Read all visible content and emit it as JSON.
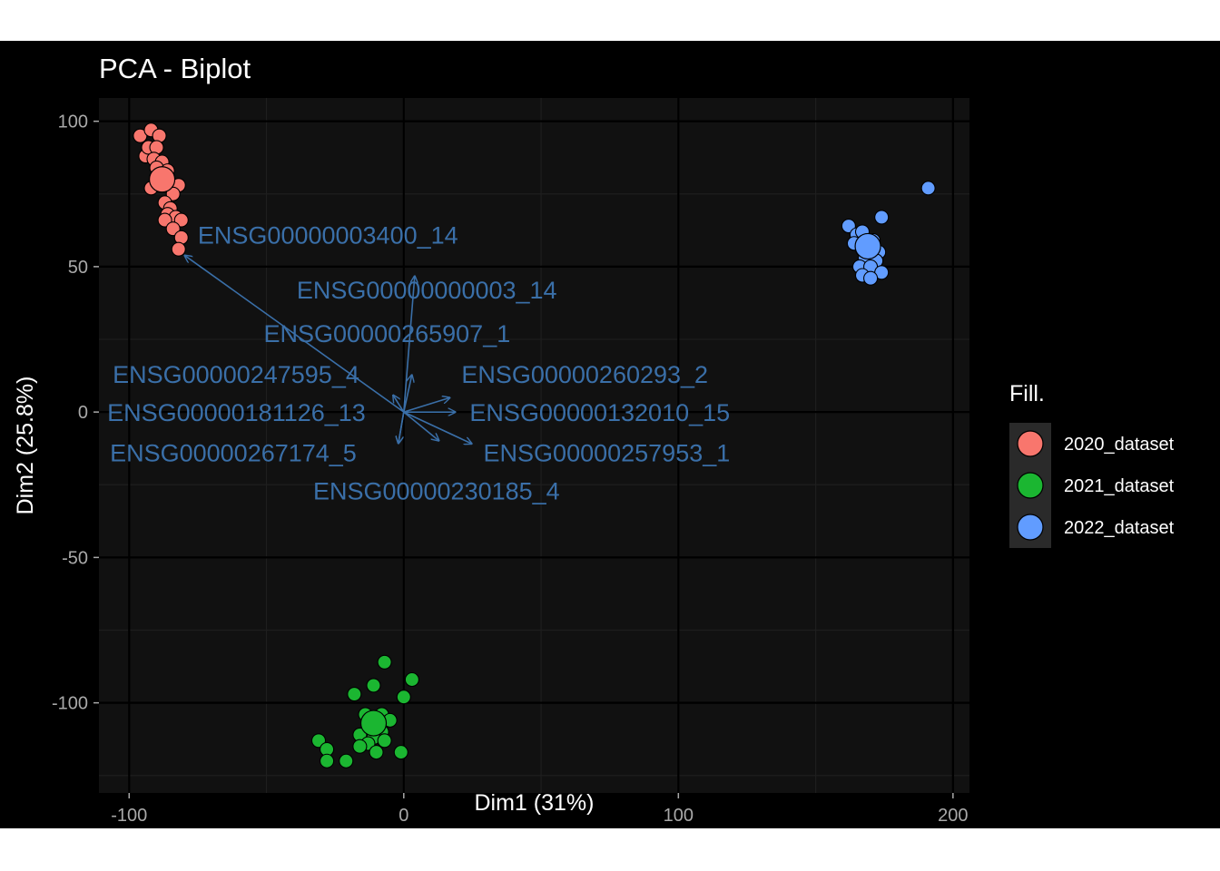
{
  "chart_data": {
    "type": "scatter",
    "title": "PCA - Biplot",
    "xlabel": "Dim1 (31%)",
    "ylabel": "Dim2 (25.8%)",
    "xlim": [
      -111,
      206
    ],
    "ylim": [
      -131,
      108
    ],
    "xticks": [
      -100,
      0,
      100,
      200
    ],
    "yticks": [
      -100,
      -50,
      0,
      50,
      100
    ],
    "xtick_labels": [
      "-100",
      "0",
      "100",
      "200"
    ],
    "ytick_labels": [
      "-100",
      "-50",
      "0",
      "50",
      "100"
    ],
    "grid": true,
    "legend": {
      "title": "Fill.",
      "position": "right",
      "entries": [
        "2020_dataset",
        "2021_dataset",
        "2022_dataset"
      ]
    },
    "colors": {
      "background": "#000000",
      "panel": "#111111",
      "grid_major": "#000000",
      "grid_minor": "#1e1e1e",
      "axis_text": "#a9a9a9",
      "label_text": "#ffffff",
      "arrow": "#3a6fa8",
      "legend_key": "#2a2a2a"
    },
    "series": [
      {
        "name": "2020_dataset",
        "color": "#f8766d",
        "centroid": [
          -88,
          80
        ],
        "points": [
          [
            -96,
            95
          ],
          [
            -92,
            97
          ],
          [
            -89,
            95
          ],
          [
            -94,
            88
          ],
          [
            -93,
            91
          ],
          [
            -90,
            91
          ],
          [
            -91,
            87
          ],
          [
            -88,
            86
          ],
          [
            -90,
            84
          ],
          [
            -86,
            83
          ],
          [
            -89,
            80
          ],
          [
            -87,
            78
          ],
          [
            -92,
            77
          ],
          [
            -82,
            78
          ],
          [
            -84,
            75
          ],
          [
            -87,
            72
          ],
          [
            -85,
            70
          ],
          [
            -86,
            68
          ],
          [
            -83,
            67
          ],
          [
            -87,
            66
          ],
          [
            -81,
            66
          ],
          [
            -84,
            63
          ],
          [
            -81,
            60
          ],
          [
            -82,
            56
          ]
        ]
      },
      {
        "name": "2021_dataset",
        "color": "#1bb631",
        "centroid": [
          -11,
          -107
        ],
        "points": [
          [
            -7,
            -86
          ],
          [
            3,
            -92
          ],
          [
            -18,
            -97
          ],
          [
            -11,
            -94
          ],
          [
            0,
            -98
          ],
          [
            -14,
            -104
          ],
          [
            -8,
            -104
          ],
          [
            -5,
            -106
          ],
          [
            -12,
            -109
          ],
          [
            -16,
            -111
          ],
          [
            -8,
            -110
          ],
          [
            -11,
            -112
          ],
          [
            -7,
            -113
          ],
          [
            -13,
            -114
          ],
          [
            -31,
            -113
          ],
          [
            -16,
            -115
          ],
          [
            -28,
            -116
          ],
          [
            -10,
            -117
          ],
          [
            -1,
            -117
          ],
          [
            -28,
            -120
          ],
          [
            -21,
            -120
          ]
        ]
      },
      {
        "name": "2022_dataset",
        "color": "#619cff",
        "centroid": [
          169,
          57
        ],
        "points": [
          [
            191,
            77
          ],
          [
            174,
            67
          ],
          [
            162,
            64
          ],
          [
            165,
            61
          ],
          [
            167,
            62
          ],
          [
            171,
            59
          ],
          [
            164,
            58
          ],
          [
            167,
            56
          ],
          [
            173,
            55
          ],
          [
            168,
            53
          ],
          [
            172,
            52
          ],
          [
            166,
            50
          ],
          [
            170,
            50
          ],
          [
            174,
            48
          ],
          [
            167,
            47
          ],
          [
            170,
            46
          ]
        ]
      }
    ],
    "variables": [
      {
        "label": "ENSG00000003400_14",
        "end": [
          -80,
          54
        ],
        "label_at": [
          -75,
          58
        ]
      },
      {
        "label": "ENSG00000000003_14",
        "end": [
          4,
          47
        ],
        "label_at": [
          -39,
          39
        ]
      },
      {
        "label": "ENSG00000265907_1",
        "end": [
          3,
          13
        ],
        "label_at": [
          -51,
          24
        ]
      },
      {
        "label": "ENSG00000247595_4",
        "end": [
          -4,
          6
        ],
        "label_at": [
          -106,
          10
        ]
      },
      {
        "label": "ENSG00000260293_2",
        "end": [
          17,
          5
        ],
        "label_at": [
          21,
          10
        ]
      },
      {
        "label": "ENSG00000132010_15",
        "end": [
          19,
          0
        ],
        "label_at": [
          24,
          -3
        ]
      },
      {
        "label": "ENSG00000257953_1",
        "end": [
          25,
          -11
        ],
        "label_at": [
          29,
          -17
        ]
      },
      {
        "label": "ENSG00000181126_13",
        "end": [
          -2,
          -11
        ],
        "label_at": [
          -108,
          -3
        ]
      },
      {
        "label": "ENSG00000267174_5",
        "end": [
          -2,
          -11
        ],
        "label_at": [
          -107,
          -17
        ]
      },
      {
        "label": "ENSG00000230185_4",
        "end": [
          13,
          -10
        ],
        "label_at": [
          -33,
          -30
        ]
      }
    ]
  }
}
